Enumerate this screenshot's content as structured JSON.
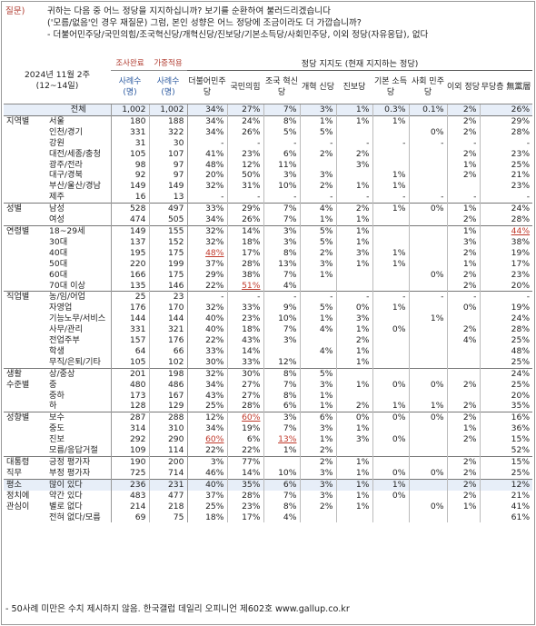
{
  "intro": {
    "qlabel": "질문)",
    "line1": "귀하는 다음 중 어느 정당을 지지하십니까? 보기를 순환하여 불러드리겠습니다",
    "line2": "('모름/없음'인 경우 재질문) 그럼, 본인 성향은 어느 정당에 조금이라도 더 가깝습니까?",
    "line3": "- 더불어민주당/국민의힘/조국혁신당/개혁신당/진보당/기본소득당/사회민주당, 이외 정당(자유응답), 없다"
  },
  "header": {
    "period_line1": "2024년 11월 2주",
    "period_line2": "(12~14일)",
    "col_weighted_top": "조사완료",
    "col_target_top": "가중적용",
    "support_title": "정당 지지도 (현재 지지하는 정당)",
    "cols": [
      {
        "label": "사례수 (명)"
      },
      {
        "label": "사례수 (명)"
      },
      {
        "label": "더불어민주당"
      },
      {
        "label": "국민의힘"
      },
      {
        "label": "조국 혁신당"
      },
      {
        "label": "개혁 신당"
      },
      {
        "label": "진보당"
      },
      {
        "label": "기본 소득당"
      },
      {
        "label": "사회 민주당"
      },
      {
        "label": "이외 정당"
      },
      {
        "label": "무당층 無黨層"
      }
    ]
  },
  "rows": [
    {
      "g": "",
      "s": "전체",
      "v": [
        "1,002",
        "1,002",
        "34%",
        "27%",
        "7%",
        "3%",
        "1%",
        "0.3%",
        "0.1%",
        "2%",
        "26%"
      ],
      "sep": true,
      "shade": true
    },
    {
      "g": "지역별",
      "s": "서울",
      "v": [
        "180",
        "188",
        "34%",
        "24%",
        "8%",
        "1%",
        "1%",
        "1%",
        "",
        "2%",
        "29%"
      ],
      "sep": true
    },
    {
      "g": "",
      "s": "인천/경기",
      "v": [
        "331",
        "322",
        "34%",
        "26%",
        "5%",
        "5%",
        "",
        "",
        "0%",
        "2%",
        "28%"
      ]
    },
    {
      "g": "",
      "s": "강원",
      "v": [
        "31",
        "30",
        "-",
        "-",
        "-",
        "-",
        "-",
        "-",
        "-",
        "-",
        "-"
      ]
    },
    {
      "g": "",
      "s": "대전/세종/충청",
      "v": [
        "105",
        "107",
        "41%",
        "23%",
        "6%",
        "2%",
        "2%",
        "",
        "",
        "2%",
        "23%"
      ]
    },
    {
      "g": "",
      "s": "광주/전라",
      "v": [
        "98",
        "97",
        "48%",
        "12%",
        "11%",
        "",
        "3%",
        "",
        "",
        "1%",
        "25%"
      ]
    },
    {
      "g": "",
      "s": "대구/경북",
      "v": [
        "92",
        "97",
        "20%",
        "50%",
        "3%",
        "3%",
        "",
        "1%",
        "",
        "2%",
        "21%"
      ]
    },
    {
      "g": "",
      "s": "부산/울산/경남",
      "v": [
        "149",
        "149",
        "32%",
        "31%",
        "10%",
        "2%",
        "1%",
        "1%",
        "",
        "",
        "23%"
      ]
    },
    {
      "g": "",
      "s": "제주",
      "v": [
        "16",
        "13",
        "-",
        "-",
        "-",
        "-",
        "-",
        "-",
        "-",
        "-",
        "-"
      ]
    },
    {
      "g": "성별",
      "s": "남성",
      "v": [
        "528",
        "497",
        "33%",
        "29%",
        "7%",
        "4%",
        "2%",
        "1%",
        "0%",
        "1%",
        "24%"
      ],
      "sep": true
    },
    {
      "g": "",
      "s": "여성",
      "v": [
        "474",
        "505",
        "34%",
        "26%",
        "7%",
        "1%",
        "1%",
        "",
        "",
        "2%",
        "28%"
      ]
    },
    {
      "g": "연령별",
      "s": "18~29세",
      "v": [
        "149",
        "155",
        "32%",
        "14%",
        "3%",
        "5%",
        "1%",
        "",
        "",
        "1%",
        "44%"
      ],
      "sep": true,
      "red": [
        10
      ]
    },
    {
      "g": "",
      "s": "30대",
      "v": [
        "137",
        "152",
        "32%",
        "18%",
        "3%",
        "5%",
        "1%",
        "",
        "",
        "3%",
        "38%"
      ]
    },
    {
      "g": "",
      "s": "40대",
      "v": [
        "195",
        "175",
        "48%",
        "17%",
        "8%",
        "2%",
        "3%",
        "1%",
        "",
        "2%",
        "19%"
      ],
      "red": [
        2
      ]
    },
    {
      "g": "",
      "s": "50대",
      "v": [
        "220",
        "199",
        "37%",
        "28%",
        "13%",
        "3%",
        "1%",
        "1%",
        "",
        "1%",
        "17%"
      ]
    },
    {
      "g": "",
      "s": "60대",
      "v": [
        "166",
        "175",
        "29%",
        "38%",
        "7%",
        "1%",
        "",
        "",
        "0%",
        "2%",
        "23%"
      ]
    },
    {
      "g": "",
      "s": "70대 이상",
      "v": [
        "135",
        "146",
        "22%",
        "51%",
        "4%",
        "",
        "",
        "",
        "",
        "2%",
        "20%"
      ],
      "red": [
        3
      ]
    },
    {
      "g": "직업별",
      "s": "농/임/어업",
      "v": [
        "25",
        "23",
        "-",
        "-",
        "-",
        "-",
        "-",
        "-",
        "-",
        "-",
        "-"
      ],
      "sep": true
    },
    {
      "g": "",
      "s": "자영업",
      "v": [
        "176",
        "170",
        "32%",
        "33%",
        "9%",
        "5%",
        "0%",
        "1%",
        "",
        "0%",
        "19%"
      ]
    },
    {
      "g": "",
      "s": "기능노무/서비스",
      "v": [
        "144",
        "144",
        "40%",
        "23%",
        "10%",
        "1%",
        "3%",
        "",
        "1%",
        "",
        "24%"
      ]
    },
    {
      "g": "",
      "s": "사무/관리",
      "v": [
        "331",
        "321",
        "40%",
        "18%",
        "7%",
        "4%",
        "1%",
        "0%",
        "",
        "2%",
        "28%"
      ]
    },
    {
      "g": "",
      "s": "전업주부",
      "v": [
        "157",
        "176",
        "22%",
        "43%",
        "3%",
        "",
        "2%",
        "",
        "",
        "4%",
        "25%"
      ]
    },
    {
      "g": "",
      "s": "학생",
      "v": [
        "64",
        "66",
        "33%",
        "14%",
        "",
        "4%",
        "1%",
        "",
        "",
        "",
        "48%"
      ]
    },
    {
      "g": "",
      "s": "무직/은퇴/기타",
      "v": [
        "105",
        "102",
        "30%",
        "33%",
        "12%",
        "",
        "1%",
        "",
        "",
        "",
        "25%"
      ]
    },
    {
      "g": "생활",
      "s": "상/중상",
      "v": [
        "201",
        "198",
        "32%",
        "30%",
        "8%",
        "5%",
        "",
        "",
        "",
        "",
        "24%"
      ],
      "sep": true
    },
    {
      "g": "수준별",
      "s": "중",
      "v": [
        "480",
        "486",
        "34%",
        "27%",
        "7%",
        "3%",
        "1%",
        "0%",
        "0%",
        "2%",
        "25%"
      ]
    },
    {
      "g": "",
      "s": "중하",
      "v": [
        "173",
        "167",
        "43%",
        "27%",
        "8%",
        "1%",
        "",
        "",
        "",
        "",
        "20%"
      ]
    },
    {
      "g": "",
      "s": "하",
      "v": [
        "128",
        "129",
        "25%",
        "28%",
        "6%",
        "1%",
        "2%",
        "1%",
        "1%",
        "2%",
        "35%"
      ]
    },
    {
      "g": "성향별",
      "s": "보수",
      "v": [
        "287",
        "288",
        "12%",
        "60%",
        "3%",
        "6%",
        "0%",
        "0%",
        "0%",
        "2%",
        "16%"
      ],
      "sep": true,
      "red": [
        3
      ]
    },
    {
      "g": "",
      "s": "중도",
      "v": [
        "314",
        "310",
        "34%",
        "19%",
        "7%",
        "3%",
        "1%",
        "",
        "",
        "1%",
        "36%"
      ]
    },
    {
      "g": "",
      "s": "진보",
      "v": [
        "292",
        "290",
        "60%",
        "6%",
        "13%",
        "1%",
        "3%",
        "0%",
        "",
        "2%",
        "15%"
      ],
      "red": [
        2,
        4
      ]
    },
    {
      "g": "",
      "s": "모름/응답거절",
      "v": [
        "109",
        "114",
        "22%",
        "22%",
        "1%",
        "2%",
        "",
        "",
        "",
        "",
        "52%"
      ]
    },
    {
      "g": "대통령",
      "s": "긍정 평가자",
      "v": [
        "190",
        "200",
        "3%",
        "77%",
        "",
        "2%",
        "1%",
        "",
        "",
        "2%",
        "15%"
      ],
      "sep": true
    },
    {
      "g": "직무",
      "s": "부정 평가자",
      "v": [
        "725",
        "714",
        "46%",
        "14%",
        "10%",
        "3%",
        "1%",
        "0%",
        "0%",
        "2%",
        "25%"
      ]
    },
    {
      "g": "평소",
      "s": "많이 있다",
      "v": [
        "236",
        "231",
        "40%",
        "35%",
        "6%",
        "3%",
        "1%",
        "1%",
        "",
        "2%",
        "12%"
      ],
      "sep": true,
      "shade": true
    },
    {
      "g": "정치에",
      "s": "약간 있다",
      "v": [
        "483",
        "477",
        "37%",
        "28%",
        "7%",
        "3%",
        "1%",
        "0%",
        "",
        "2%",
        "21%"
      ]
    },
    {
      "g": "관심이",
      "s": "별로 없다",
      "v": [
        "214",
        "218",
        "25%",
        "23%",
        "8%",
        "2%",
        "1%",
        "",
        "0%",
        "1%",
        "41%"
      ]
    },
    {
      "g": "",
      "s": "전혀 없다/모름",
      "v": [
        "69",
        "75",
        "18%",
        "17%",
        "4%",
        "",
        "",
        "",
        "",
        "",
        "61%"
      ]
    }
  ],
  "footer": "- 50사례 미만은 수치 제시하지 않음. 한국갤럽 데일리 오피니언 제602호 www.gallup.co.kr"
}
